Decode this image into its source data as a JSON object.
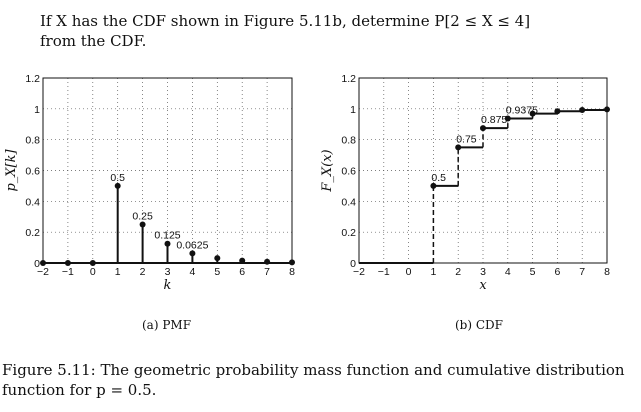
{
  "question": {
    "line1": "If X has the CDF shown in Figure 5.11b, determine P[2 ≤ X ≤ 4]",
    "line2": "from the CDF."
  },
  "figure_caption": {
    "line1": "Figure 5.11: The geometric probability mass function and cumulative distribution",
    "line2": "function for p = 0.5."
  },
  "chart_data": [
    {
      "type": "stem",
      "caption": "(a) PMF",
      "xlabel": "k",
      "ylabel": "p_X[k]",
      "xlim": [
        -2,
        8
      ],
      "ylim": [
        0,
        1.2
      ],
      "xticks": [
        "−2",
        "−1",
        "0",
        "1",
        "2",
        "3",
        "4",
        "5",
        "6",
        "7",
        "8"
      ],
      "yticks": [
        "0",
        "0.2",
        "0.4",
        "0.6",
        "0.8",
        "1",
        "1.2"
      ],
      "grid": true,
      "x": [
        -2,
        -1,
        0,
        1,
        2,
        3,
        4,
        5,
        6,
        7,
        8
      ],
      "y": [
        0,
        0,
        0,
        0.5,
        0.25,
        0.125,
        0.0625,
        0.03125,
        0.015625,
        0.0078125,
        0.00390625
      ],
      "data_labels": [
        {
          "x": 1,
          "text": "0.5"
        },
        {
          "x": 2,
          "text": "0.25"
        },
        {
          "x": 3,
          "text": "0.125"
        },
        {
          "x": 4,
          "text": "0.0625"
        }
      ]
    },
    {
      "type": "step",
      "caption": "(b) CDF",
      "xlabel": "x",
      "ylabel": "F_X(x)",
      "xlim": [
        -2,
        8
      ],
      "ylim": [
        0,
        1.2
      ],
      "xticks": [
        "−2",
        "−1",
        "0",
        "1",
        "2",
        "3",
        "4",
        "5",
        "6",
        "7",
        "8"
      ],
      "yticks": [
        "0",
        "0.2",
        "0.4",
        "0.6",
        "0.8",
        "1",
        "1.2"
      ],
      "grid": true,
      "x": [
        1,
        2,
        3,
        4,
        5,
        6,
        7,
        8
      ],
      "y": [
        0.5,
        0.75,
        0.875,
        0.9375,
        0.96875,
        0.984375,
        0.9921875,
        0.99609375
      ],
      "data_labels": [
        {
          "x": 1,
          "text": "0.5"
        },
        {
          "x": 2,
          "text": "0.75"
        },
        {
          "x": 3,
          "text": "0.875"
        },
        {
          "x": 4,
          "text": "0.9375"
        }
      ]
    }
  ]
}
